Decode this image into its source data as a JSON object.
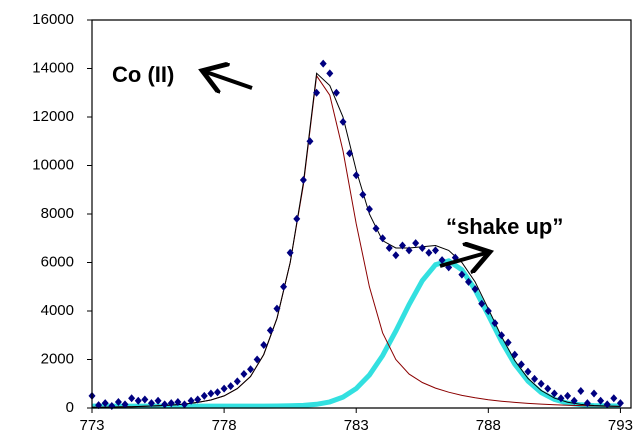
{
  "chart_data": {
    "type": "scatter",
    "xlim": [
      773,
      793.4
    ],
    "ylim": [
      0,
      16000
    ],
    "xticks": [
      773,
      778,
      783,
      788,
      793
    ],
    "yticks": [
      0,
      2000,
      4000,
      6000,
      8000,
      10000,
      12000,
      14000,
      16000
    ],
    "annotations": [
      "Co (II)",
      "“shake up”"
    ],
    "series": [
      {
        "mode": "markers",
        "color": "#000080",
        "x": [
          773,
          773.25,
          773.5,
          773.75,
          774,
          774.25,
          774.5,
          774.75,
          775,
          775.25,
          775.5,
          775.75,
          776,
          776.25,
          776.5,
          776.75,
          777,
          777.25,
          777.5,
          777.75,
          778,
          778.25,
          778.5,
          778.75,
          779,
          779.25,
          779.5,
          779.75,
          780,
          780.25,
          780.5,
          780.75,
          781,
          781.25,
          781.5,
          781.75,
          782,
          782.25,
          782.5,
          782.75,
          783,
          783.25,
          783.5,
          783.75,
          784,
          784.25,
          784.5,
          784.75,
          785,
          785.25,
          785.5,
          785.75,
          786,
          786.25,
          786.5,
          786.75,
          787,
          787.25,
          787.5,
          787.75,
          788,
          788.25,
          788.5,
          788.75,
          789,
          789.25,
          789.5,
          789.75,
          790,
          790.25,
          790.5,
          790.75,
          791,
          791.25,
          791.5,
          791.75,
          792,
          792.25,
          792.5,
          792.75,
          793
        ],
        "values": [
          500,
          120,
          200,
          80,
          250,
          150,
          400,
          300,
          350,
          200,
          300,
          150,
          200,
          250,
          150,
          300,
          350,
          500,
          600,
          650,
          800,
          900,
          1100,
          1400,
          1600,
          2000,
          2600,
          3200,
          4100,
          5000,
          6400,
          7800,
          9400,
          11000,
          13000,
          14200,
          13800,
          13000,
          11800,
          10500,
          9600,
          8800,
          8200,
          7400,
          7000,
          6600,
          6300,
          6700,
          6500,
          6800,
          6600,
          6400,
          6500,
          6100,
          5800,
          6200,
          5500,
          5200,
          4900,
          4300,
          4000,
          3500,
          3000,
          2700,
          2200,
          1800,
          1500,
          1200,
          1000,
          800,
          600,
          400,
          500,
          300,
          700,
          200,
          600,
          300,
          150,
          400,
          200
        ]
      },
      {
        "mode": "line",
        "color": "#8b0000",
        "x": [
          773,
          773.5,
          774,
          774.5,
          775,
          775.5,
          776,
          776.5,
          777,
          777.5,
          778,
          778.5,
          779,
          779.5,
          780,
          780.5,
          781,
          781.5,
          782,
          782.5,
          783,
          783.5,
          784,
          784.5,
          785,
          785.5,
          786,
          786.5,
          787,
          787.5,
          788,
          788.5,
          789,
          789.5,
          790,
          790.5,
          791,
          791.5,
          792,
          792.5,
          793
        ],
        "values": [
          30,
          35,
          45,
          55,
          70,
          90,
          120,
          160,
          230,
          330,
          500,
          800,
          1300,
          2200,
          3700,
          6000,
          9200,
          13700,
          12900,
          10600,
          7600,
          5000,
          3100,
          2000,
          1400,
          1050,
          820,
          650,
          520,
          420,
          340,
          280,
          230,
          190,
          160,
          135,
          115,
          100,
          85,
          75,
          65
        ]
      },
      {
        "mode": "thick",
        "color": "#33e0e0",
        "x": [
          773,
          773.5,
          774,
          774.5,
          775,
          775.5,
          776,
          776.5,
          777,
          777.5,
          778,
          778.5,
          779,
          779.5,
          780,
          780.5,
          781,
          781.5,
          782,
          782.5,
          783,
          783.5,
          784,
          784.5,
          785,
          785.5,
          786,
          786.5,
          787,
          787.5,
          788,
          788.5,
          789,
          789.5,
          790,
          790.5,
          791,
          791.5,
          792,
          792.5,
          793
        ],
        "values": [
          80,
          80,
          80,
          80,
          80,
          80,
          80,
          80,
          80,
          80,
          80,
          80,
          80,
          80,
          83,
          90,
          108,
          153,
          251,
          448,
          800,
          1360,
          2160,
          3170,
          4270,
          5250,
          5910,
          6070,
          5700,
          4880,
          3830,
          2750,
          1810,
          1110,
          640,
          355,
          203,
          130,
          99,
          86,
          82
        ]
      },
      {
        "mode": "line",
        "color": "#000000",
        "x": [
          773,
          773.5,
          774,
          774.5,
          775,
          775.5,
          776,
          776.5,
          777,
          777.5,
          778,
          778.5,
          779,
          779.5,
          780,
          780.5,
          781,
          781.5,
          782,
          782.5,
          783,
          783.5,
          784,
          784.5,
          785,
          785.5,
          786,
          786.5,
          787,
          787.5,
          788,
          788.5,
          789,
          789.5,
          790,
          790.5,
          791,
          791.5,
          792,
          792.5,
          793
        ],
        "values": [
          30,
          35,
          45,
          55,
          70,
          90,
          120,
          160,
          230,
          330,
          500,
          800,
          1300,
          2200,
          3700,
          6000,
          9300,
          13800,
          13300,
          12000,
          9800,
          8000,
          6900,
          6600,
          6600,
          6650,
          6700,
          6500,
          6000,
          5200,
          4090,
          2950,
          1960,
          1220,
          720,
          410,
          238,
          150,
          104,
          81,
          67
        ]
      }
    ]
  }
}
